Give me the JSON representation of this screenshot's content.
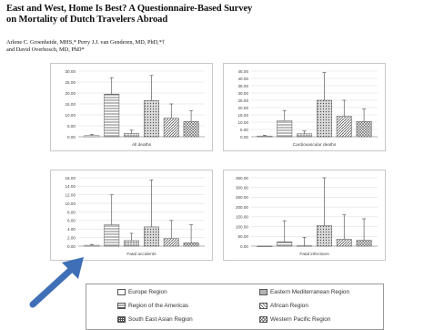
{
  "paper": {
    "title_line1": "East and West, Home Is Best? A Questionnaire-Based Survey",
    "title_line2": "on Mortality of Dutch Travelers Abroad",
    "authors_line1": "Arlene C. Groenheide, MHS,* Perry J.J. van Genderen, MD, PhD,*†",
    "authors_line2": "and David Overbosch, MD, PhD*"
  },
  "colors": {
    "bar_stroke": "#555555",
    "error_bar": "#444444",
    "gridline": "#d9d9d9",
    "arrow": "#3f6fb6"
  },
  "region_patterns": [
    "europe",
    "region-of-the-americas",
    "south-east-asia",
    "eastern-mediterranean",
    "african",
    "western-pacific"
  ],
  "legend": {
    "items": [
      {
        "label": "Europe Region",
        "pattern": "europe"
      },
      {
        "label": "Eastern Mediterranean Region",
        "pattern": "eastern-mediterranean"
      },
      {
        "label": "Region of the Americas",
        "pattern": "region-of-the-americas"
      },
      {
        "label": "African Region",
        "pattern": "african"
      },
      {
        "label": "South East Asian Region",
        "pattern": "south-east-asia"
      },
      {
        "label": "Western Pacific Region",
        "pattern": "western-pacific"
      }
    ]
  },
  "chart_data": [
    {
      "type": "bar",
      "xlabel": "All deaths",
      "ylim": [
        0,
        30
      ],
      "ytick_labels": [
        "30.00",
        "25.00",
        "20.00",
        "15.00",
        "10.00",
        "5.00",
        "0.00"
      ],
      "categories": [
        "Europe Region",
        "Region of the Americas",
        "South East Asian Region",
        "Eastern Mediterranean Region",
        "African Region",
        "Western Pacific Region"
      ],
      "values": [
        0.5,
        19.5,
        1.5,
        16.5,
        8.5,
        7
      ],
      "error_high": [
        1,
        27,
        3,
        28,
        15,
        12
      ]
    },
    {
      "type": "bar",
      "xlabel": "Cardiovascular deaths",
      "ylim": [
        0,
        45
      ],
      "ytick_labels": [
        "45.00",
        "40.00",
        "35.00",
        "30.00",
        "25.00",
        "20.00",
        "15.00",
        "10.00",
        "5.00",
        "0.00"
      ],
      "categories": [
        "Europe Region",
        "Region of the Americas",
        "South East Asian Region",
        "Eastern Mediterranean Region",
        "African Region",
        "Western Pacific Region"
      ],
      "values": [
        0.5,
        11,
        2,
        25,
        14,
        10.5
      ],
      "error_high": [
        1,
        18,
        4,
        44,
        25,
        19
      ]
    },
    {
      "type": "bar",
      "xlabel": "Fatal accidents",
      "ylim": [
        0,
        16
      ],
      "ytick_labels": [
        "16.00",
        "14.00",
        "12.00",
        "10.00",
        "8.00",
        "6.00",
        "4.00",
        "2.00",
        "0.00"
      ],
      "categories": [
        "Europe Region",
        "Region of the Americas",
        "South East Asian Region",
        "Eastern Mediterranean Region",
        "African Region",
        "Western Pacific Region"
      ],
      "values": [
        0.2,
        5,
        1.3,
        4.5,
        1.8,
        0.8
      ],
      "error_high": [
        0.4,
        12,
        3,
        15.5,
        6,
        5
      ]
    },
    {
      "type": "bar",
      "xlabel": "Fatal infections",
      "ylim": [
        0,
        350
      ],
      "ytick_labels": [
        "350.00",
        "300.00",
        "250.00",
        "200.00",
        "150.00",
        "100.00",
        "50.00",
        "0.00"
      ],
      "categories": [
        "Europe Region",
        "Region of the Americas",
        "South East Asian Region",
        "Eastern Mediterranean Region",
        "African Region",
        "Western Pacific Region"
      ],
      "values": [
        0,
        22,
        2,
        105,
        35,
        30
      ],
      "error_high": [
        0,
        130,
        45,
        370,
        160,
        140
      ]
    }
  ]
}
